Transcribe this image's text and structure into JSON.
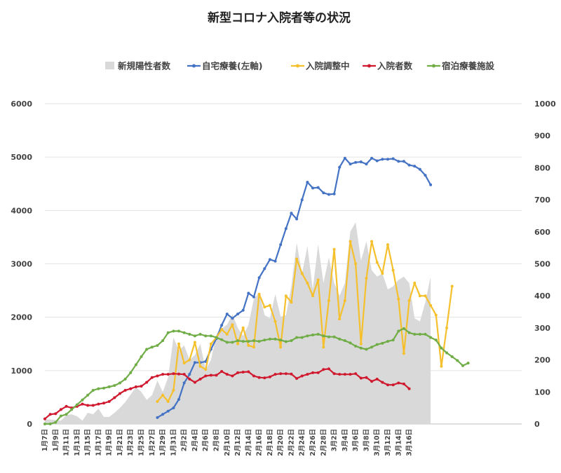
{
  "chart_data": {
    "type": "line",
    "title": "新型コロナ入院者等の状況",
    "legend": [
      {
        "key": "new",
        "label": "新規陽性者数",
        "kind": "area",
        "color": "#d9d9d9"
      },
      {
        "key": "home",
        "label": "自宅療養(左軸)",
        "kind": "line",
        "color": "#4472c4"
      },
      {
        "key": "adjust",
        "label": "入院調整中",
        "kind": "line",
        "color": "#f5c02c"
      },
      {
        "key": "hosp",
        "label": "入院者数",
        "kind": "line",
        "color": "#d0192e"
      },
      {
        "key": "hotel",
        "label": "宿泊療養施設",
        "kind": "line",
        "color": "#70ad47"
      }
    ],
    "legend_position": "top",
    "y_left": {
      "min": 0,
      "max": 6000,
      "ticks": [
        "0",
        "1000",
        "2000",
        "3000",
        "4000",
        "5000",
        "6000"
      ]
    },
    "y_right": {
      "min": 0,
      "max": 1000,
      "ticks": [
        "0",
        "100",
        "200",
        "300",
        "400",
        "500",
        "600",
        "700",
        "800",
        "900",
        "1000"
      ]
    },
    "grid": true,
    "x_tick_labels": [
      "1月7日",
      "1月9日",
      "1月11日",
      "1月13日",
      "1月15日",
      "1月17日",
      "1月19日",
      "1月21日",
      "1月23日",
      "1月25日",
      "1月27日",
      "1月29日",
      "1月31日",
      "2月2日",
      "2月4日",
      "2月6日",
      "2月8日",
      "2月10日",
      "2月12日",
      "2月14日",
      "2月16日",
      "2月18日",
      "2月20日",
      "2月22日",
      "2月24日",
      "2月26日",
      "2月28日",
      "3月2日",
      "3月4日",
      "3月6日",
      "3月8日",
      "3月10日",
      "3月12日",
      "3月14日",
      "3月16日"
    ],
    "series": [
      {
        "name": "新規陽性者数",
        "axis": "right",
        "values": [
          14,
          14,
          12,
          10,
          28,
          30,
          24,
          10,
          35,
          30,
          48,
          22,
          22,
          35,
          50,
          68,
          92,
          115,
          100,
          75,
          90,
          135,
          100,
          145,
          270,
          230,
          245,
          200,
          215,
          250,
          170,
          200,
          278,
          298,
          310,
          342,
          300,
          275,
          310,
          390,
          410,
          340,
          330,
          405,
          335,
          340,
          430,
          565,
          470,
          555,
          420,
          560,
          440,
          520,
          440,
          400,
          440,
          600,
          630,
          510,
          570,
          480,
          460,
          470,
          420,
          430,
          450,
          460,
          440,
          330,
          320,
          380,
          460
        ]
      },
      {
        "name": "自宅療養(左軸)",
        "axis": "left",
        "start_index": 21,
        "values": [
          120,
          180,
          240,
          300,
          460,
          770,
          930,
          1150,
          1150,
          1170,
          1400,
          1600,
          1850,
          2060,
          1980,
          2060,
          2130,
          2450,
          2380,
          2740,
          2910,
          3080,
          3050,
          3360,
          3660,
          3950,
          3840,
          4200,
          4530,
          4420,
          4430,
          4330,
          4300,
          4310,
          4810,
          4980,
          4870,
          4900,
          4910,
          4870,
          4980,
          4930,
          4960,
          4960,
          4970,
          4920,
          4920,
          4850,
          4830,
          4770,
          4660,
          4480
        ]
      },
      {
        "name": "入院調整中",
        "axis": "right",
        "start_index": 21,
        "values": [
          70,
          90,
          70,
          105,
          250,
          190,
          200,
          255,
          180,
          170,
          250,
          270,
          295,
          280,
          310,
          250,
          300,
          245,
          240,
          405,
          365,
          370,
          320,
          240,
          400,
          380,
          515,
          470,
          440,
          400,
          450,
          240,
          385,
          545,
          328,
          385,
          570,
          500,
          250,
          455,
          570,
          505,
          470,
          560,
          480,
          390,
          220,
          385,
          440,
          400,
          400,
          370,
          340,
          180,
          300,
          430
        ]
      },
      {
        "name": "入院者数",
        "axis": "right",
        "values": [
          16,
          30,
          32,
          45,
          55,
          50,
          55,
          62,
          58,
          58,
          62,
          65,
          70,
          82,
          95,
          105,
          110,
          116,
          118,
          130,
          145,
          150,
          155,
          155,
          157,
          156,
          155,
          140,
          130,
          140,
          150,
          152,
          152,
          164,
          155,
          150,
          160,
          162,
          163,
          150,
          145,
          144,
          147,
          155,
          157,
          157,
          156,
          142,
          150,
          155,
          160,
          160,
          170,
          172,
          157,
          155,
          155,
          155,
          157,
          143,
          145,
          133,
          140,
          130,
          122,
          122,
          128,
          125,
          110
        ]
      },
      {
        "name": "宿泊療養施設",
        "axis": "right",
        "values": [
          0,
          0,
          5,
          25,
          30,
          45,
          60,
          75,
          90,
          105,
          110,
          112,
          116,
          120,
          128,
          140,
          160,
          185,
          210,
          233,
          240,
          245,
          260,
          285,
          290,
          290,
          285,
          280,
          275,
          280,
          275,
          275,
          270,
          263,
          255,
          255,
          260,
          258,
          258,
          260,
          258,
          262,
          265,
          265,
          262,
          257,
          260,
          270,
          270,
          275,
          278,
          280,
          275,
          272,
          272,
          265,
          260,
          253,
          243,
          237,
          233,
          240,
          248,
          252,
          258,
          262,
          290,
          298,
          285,
          280,
          280,
          280,
          270,
          262,
          237,
          222,
          210,
          198,
          182,
          190
        ]
      }
    ]
  }
}
